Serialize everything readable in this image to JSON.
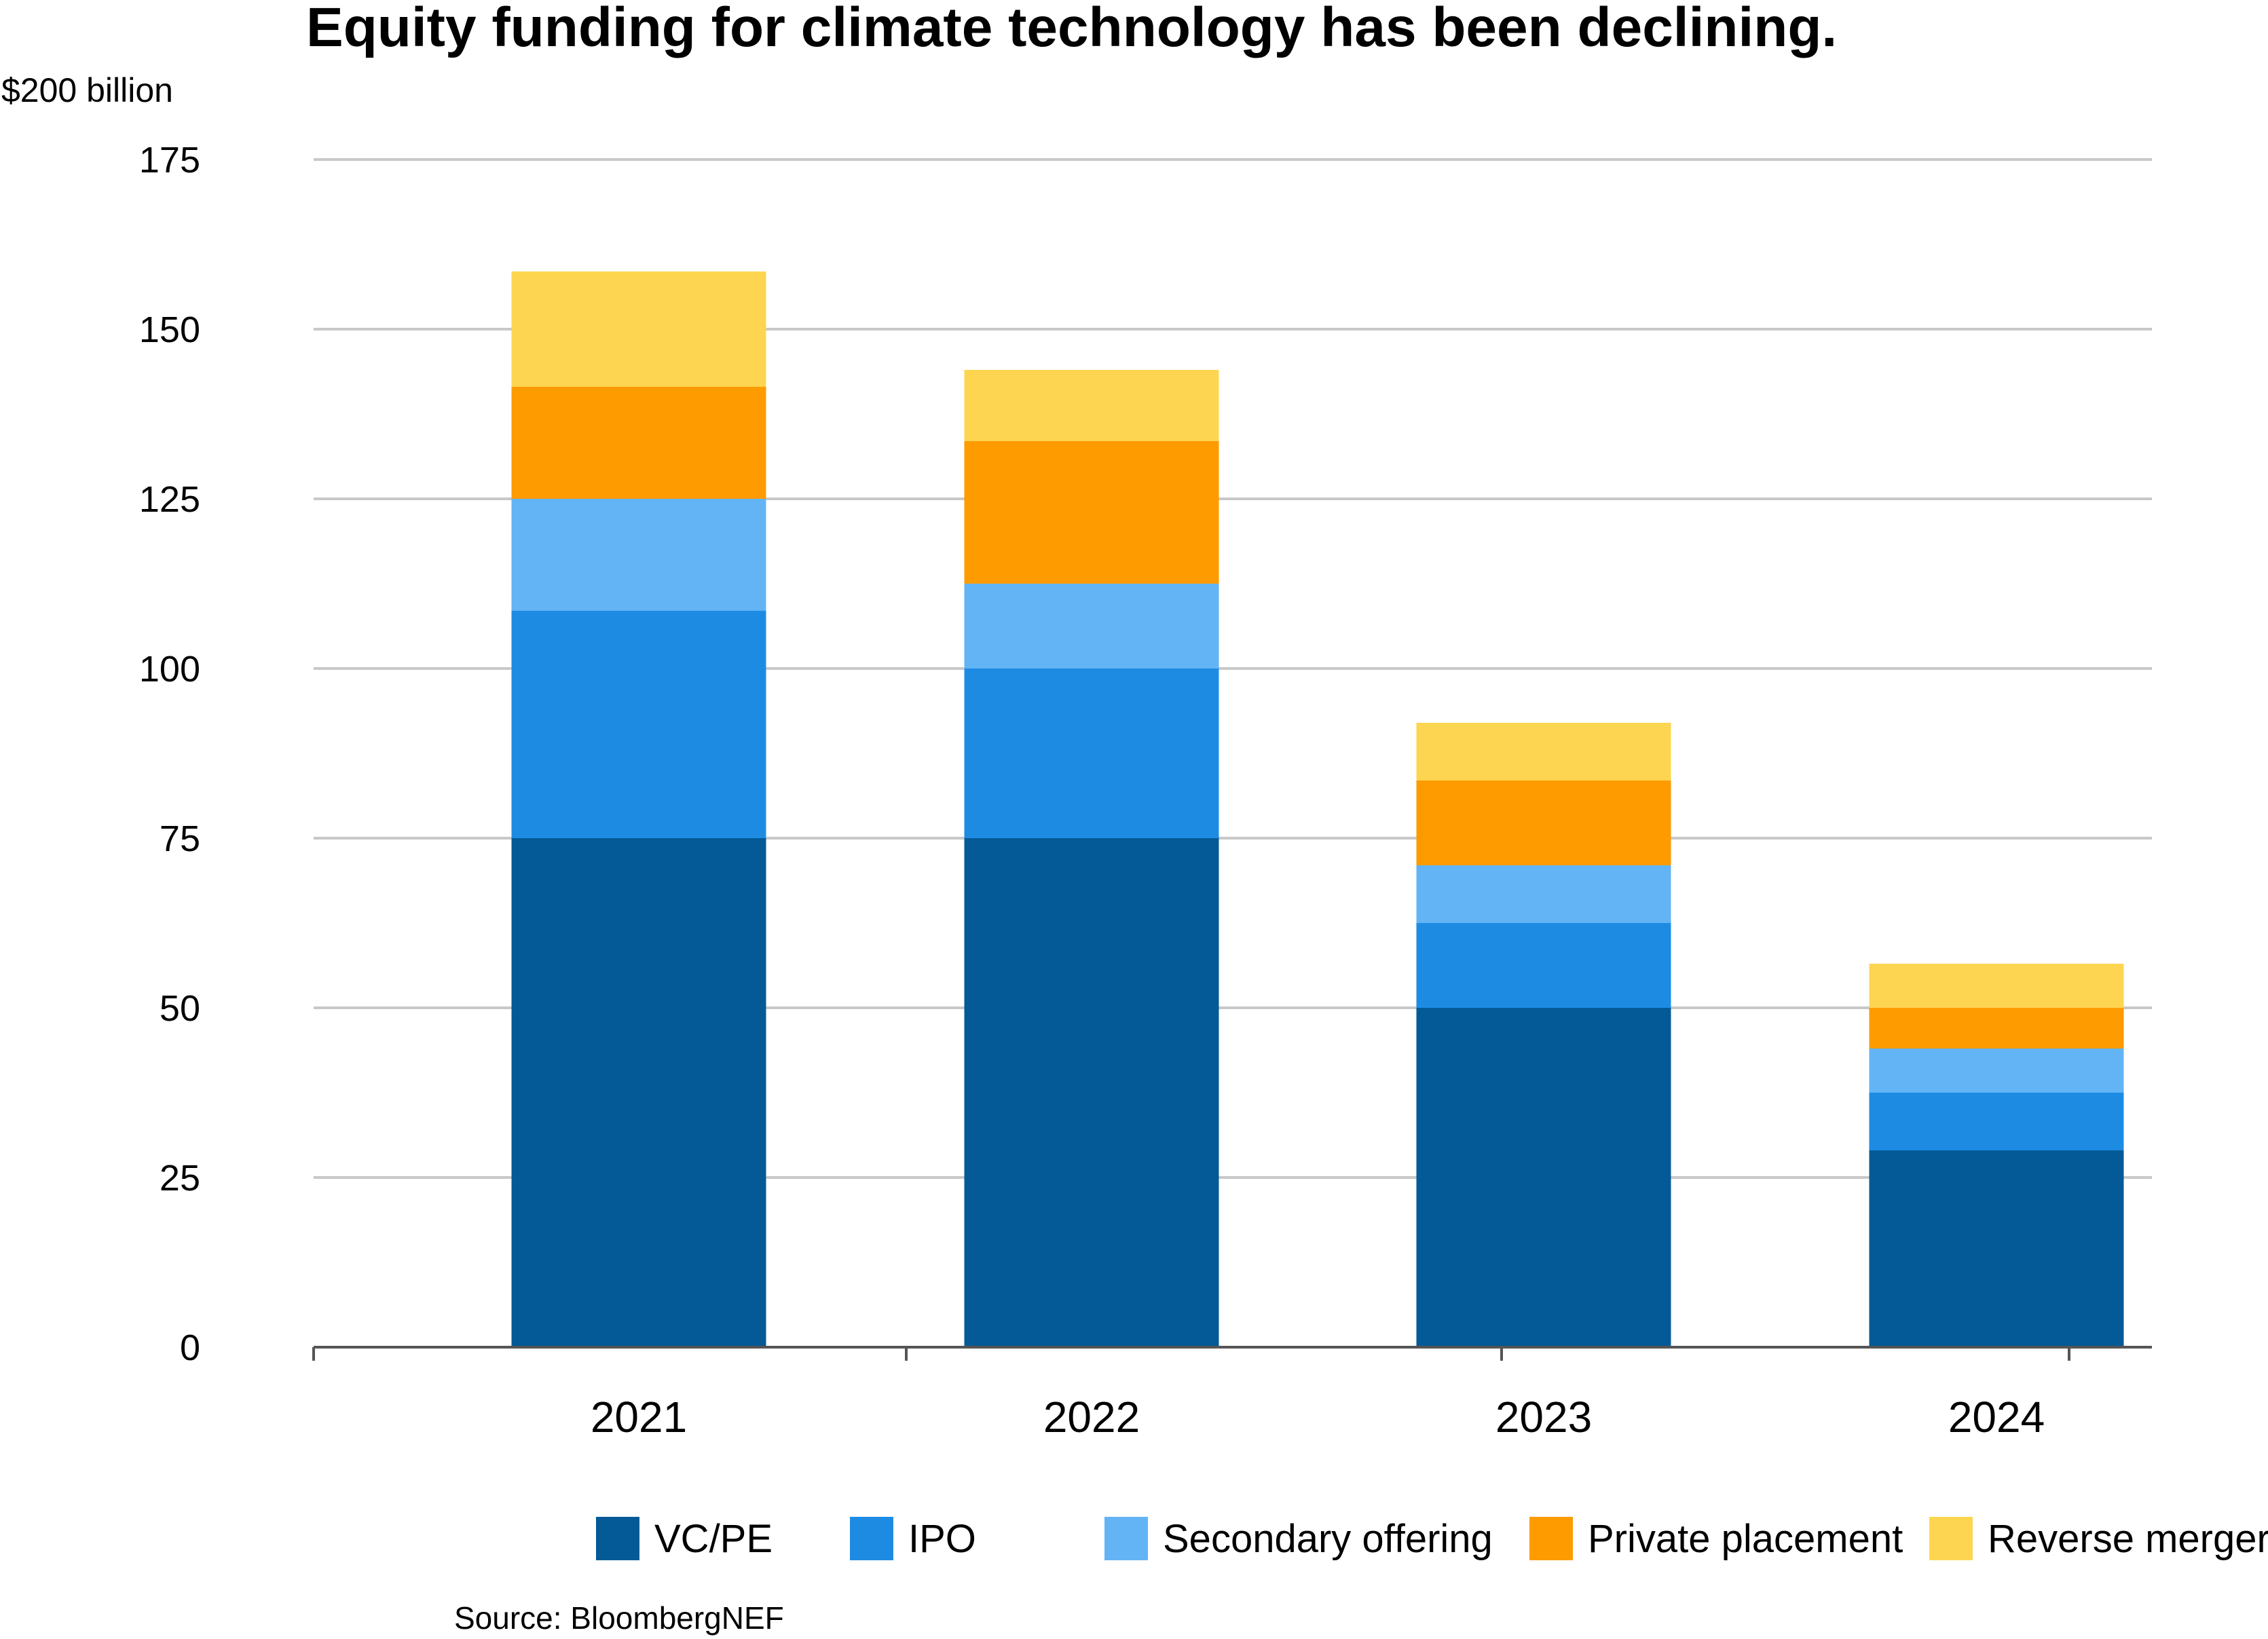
{
  "title": "Equity funding for climate technology has been declining.",
  "source": "Source: BloombergNEF",
  "chart_data": {
    "type": "bar",
    "stacked": true,
    "title": "Equity funding for climate technology has been declining.",
    "ylabel": "$200 billion",
    "xlabel": "",
    "ylim": [
      0,
      175
    ],
    "yticks": [
      0,
      25,
      50,
      75,
      100,
      125,
      150,
      175
    ],
    "grid": true,
    "legend_position": "bottom",
    "categories": [
      "2021",
      "2022",
      "2023",
      "2024"
    ],
    "series": [
      {
        "name": "VC/PE",
        "color": "#035a96",
        "values": [
          75,
          75,
          50,
          29
        ]
      },
      {
        "name": "IPO",
        "color": "#1e8be3",
        "values": [
          33.5,
          25,
          12.5,
          8.5
        ]
      },
      {
        "name": "Secondary offering",
        "color": "#63b4f5",
        "values": [
          16.5,
          12.5,
          8.5,
          6.5
        ]
      },
      {
        "name": "Private placement",
        "color": "#fd9b00",
        "values": [
          16.5,
          21,
          12.5,
          6
        ]
      },
      {
        "name": "Reverse merger",
        "color": "#fed551",
        "values": [
          17,
          10.5,
          8.5,
          6.5
        ]
      }
    ]
  }
}
